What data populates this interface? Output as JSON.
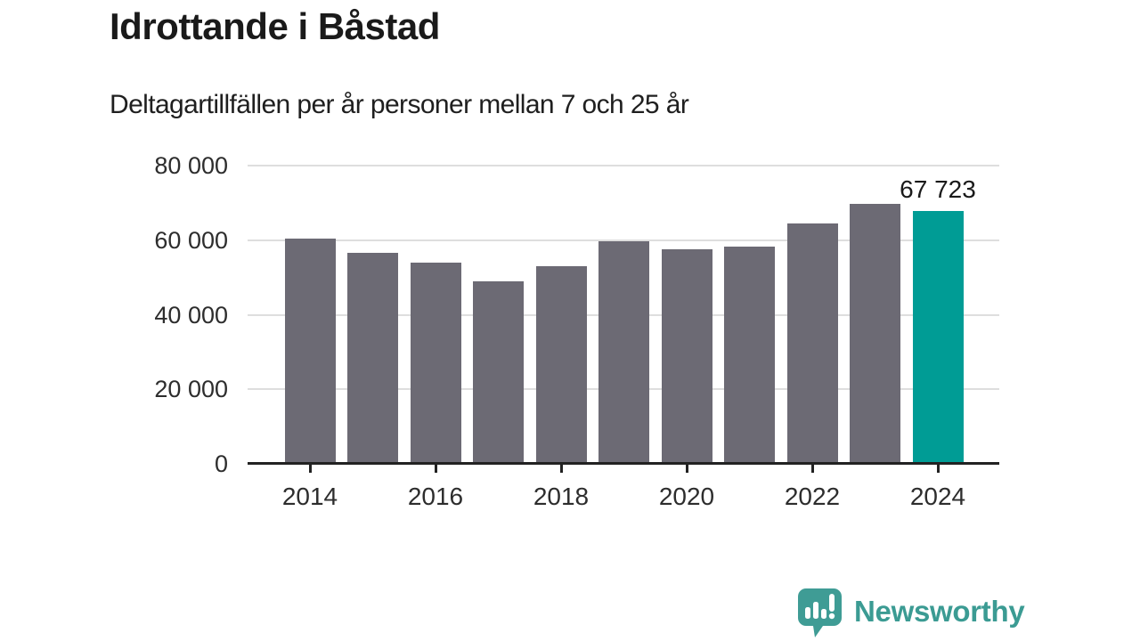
{
  "header": {
    "title": "Idrottande i Båstad",
    "subtitle": "Deltagartillfällen per år personer mellan 7 och 25 år"
  },
  "chart_data": {
    "type": "bar",
    "categories": [
      "2014",
      "2015",
      "2016",
      "2017",
      "2018",
      "2019",
      "2020",
      "2021",
      "2022",
      "2023",
      "2024"
    ],
    "values": [
      60300,
      56600,
      54000,
      49000,
      53000,
      59600,
      57500,
      58300,
      64500,
      69700,
      67723
    ],
    "highlight_index": 10,
    "value_label": {
      "index": 10,
      "text": "67 723"
    },
    "title": "Idrottande i Båstad",
    "subtitle": "Deltagartillfällen per år personer mellan 7 och 25 år",
    "xlabel": "",
    "ylabel": "",
    "ylim": [
      0,
      80000
    ],
    "y_ticks": [
      0,
      20000,
      40000,
      60000,
      80000
    ],
    "y_tick_labels": [
      "0",
      "20 000",
      "40 000",
      "60 000",
      "80 000"
    ],
    "x_tick_labels": [
      "2014",
      "2016",
      "2018",
      "2020",
      "2022",
      "2024"
    ],
    "grid": "horizontal-only",
    "legend": "none",
    "colors": {
      "bar": "#6c6a74",
      "highlight": "#009c95",
      "gridline": "#dedede",
      "axis": "#222222",
      "text": "#1a1a1a"
    }
  },
  "footer": {
    "brand": "Newsworthy",
    "brand_color": "#3b9b93",
    "brand_icon": "speech-bubble-bar-chart-icon"
  }
}
